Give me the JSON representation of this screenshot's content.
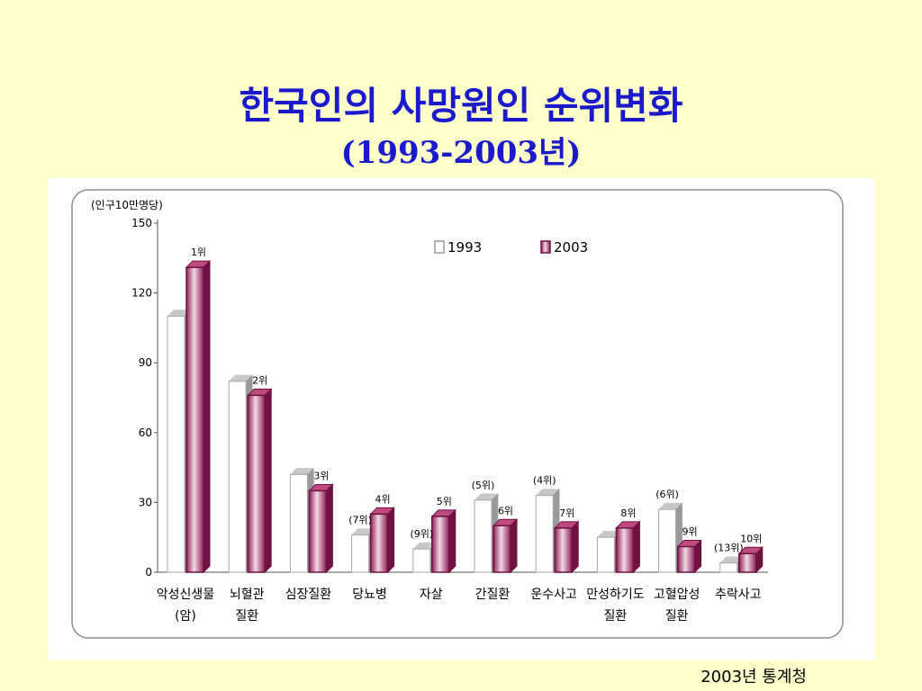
{
  "title": "한국인의 사망원인 순위변화",
  "subtitle": "(1993-2003년)",
  "source": "2003년 통계청",
  "chart_data": {
    "type": "bar",
    "unit_label": "(인구10만명당)",
    "ylim": [
      0,
      150
    ],
    "yticks": [
      0,
      30,
      60,
      90,
      120,
      150
    ],
    "grid": false,
    "legend_position": "top-right",
    "categories": [
      [
        "악성신생물",
        "(암)"
      ],
      [
        "뇌혈관",
        "질환"
      ],
      [
        "심장질환"
      ],
      [
        "당뇨병"
      ],
      [
        "자살"
      ],
      [
        "간질환"
      ],
      [
        "운수사고"
      ],
      [
        "만성하기도",
        "질환"
      ],
      [
        "고혈압성",
        "질환"
      ],
      [
        "추락사고"
      ]
    ],
    "series": [
      {
        "name": "1993",
        "color": "#ffffff",
        "values": [
          110,
          82,
          42,
          16,
          10,
          31,
          33,
          15,
          27,
          4
        ],
        "rank_labels": [
          "",
          "",
          "",
          "(7위)",
          "(9위)",
          "(5위)",
          "(4위)",
          "",
          "(6위)",
          "(13위)"
        ]
      },
      {
        "name": "2003",
        "color": "#a0306a",
        "values": [
          131,
          76,
          35,
          25,
          24,
          20,
          19,
          19,
          11,
          8
        ],
        "rank_labels": [
          "1위",
          "2위",
          "3위",
          "4위",
          "5위",
          "6위",
          "7위",
          "8위",
          "9위",
          "10위"
        ]
      }
    ]
  }
}
